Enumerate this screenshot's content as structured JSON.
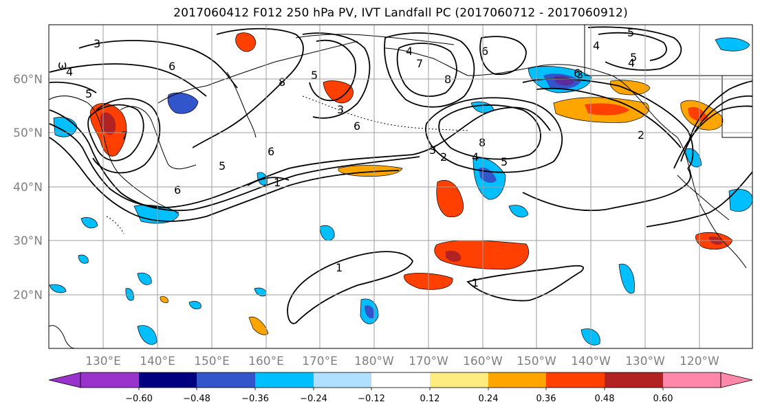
{
  "title": "2017060412 F012 250 hPa PV, IVT Landfall PC (2017060712 - 2017060912)",
  "lat_labels": [
    "60°N",
    "50°N",
    "40°N",
    "30°N",
    "20°N"
  ],
  "lon_labels": [
    "130°E",
    "140°E",
    "150°E",
    "160°E",
    "170°E",
    "180°W",
    "170°W",
    "160°W",
    "150°W",
    "140°W",
    "130°W",
    "120°W"
  ],
  "colorbar": {
    "colors": [
      "#9933cc",
      "#000080",
      "#3355cc",
      "#00bfff",
      "#b0e0ff",
      "#ffffff",
      "#ffec80",
      "#ffa500",
      "#ff4000",
      "#b22222",
      "#ff88aa"
    ],
    "labels": [
      "−0.60",
      "−0.48",
      "−0.36",
      "−0.24",
      "−0.12",
      "0.12",
      "0.24",
      "0.36",
      "0.48",
      "0.60"
    ]
  },
  "contour_labels": [
    "3",
    "ω",
    "4",
    "5",
    "6",
    "7",
    "8",
    "3",
    "6",
    "4",
    "7",
    "8",
    "5",
    "4",
    "6",
    "3",
    "6",
    "8",
    "3",
    "2",
    "4",
    "5",
    "6",
    "5",
    "4",
    "5",
    "1",
    "2",
    "5",
    "6",
    "1",
    "1"
  ]
}
